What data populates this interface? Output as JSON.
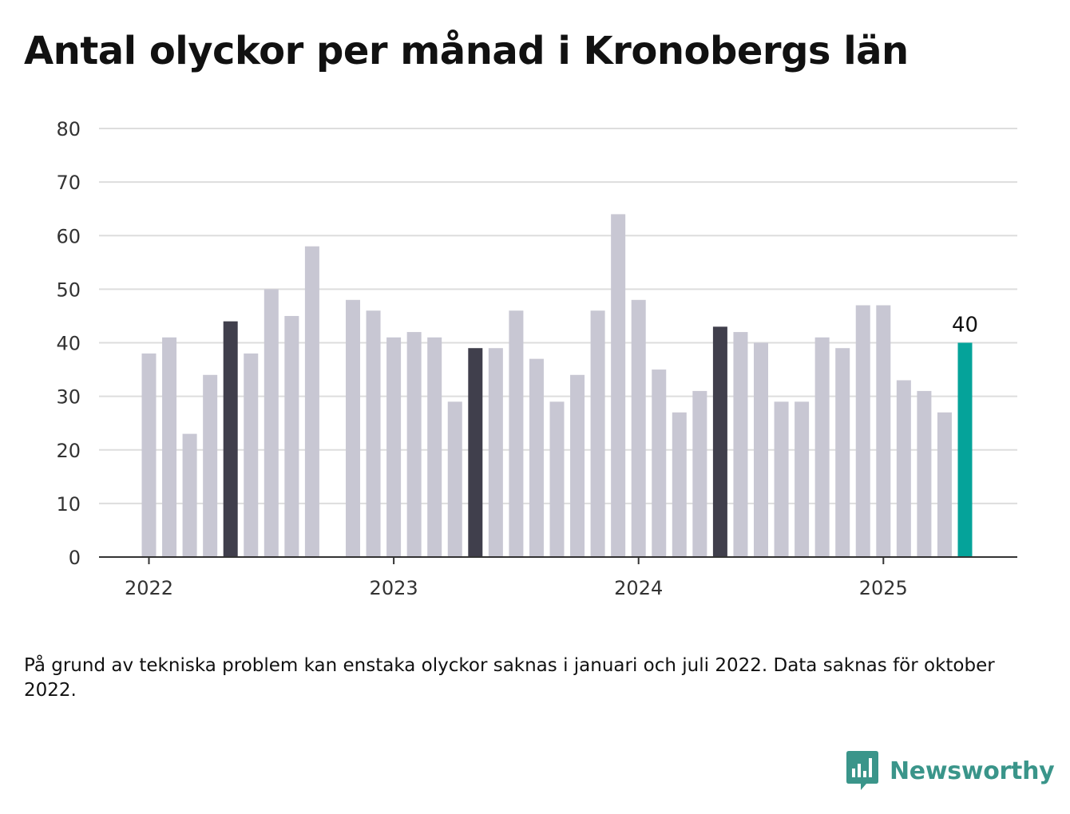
{
  "title": "Antal olyckor per månad i Kronobergs län",
  "note": "På grund av tekniska problem kan enstaka olyckor saknas i januari och juli 2022. Data saknas för oktober 2022.",
  "brand": {
    "name": "Newsworthy",
    "icon": "newsworthy-logo-icon",
    "color": "#3a958a"
  },
  "colors": {
    "default_bar": "#c8c7d3",
    "highlight_bar": "#403f4c",
    "latest_bar": "#05a39a",
    "grid": "#dddddd",
    "axis": "#333333"
  },
  "chart_data": {
    "type": "bar",
    "title": "Antal olyckor per månad i Kronobergs län",
    "xlabel": "",
    "ylabel": "",
    "ylim": [
      0,
      80
    ],
    "yticks": [
      0,
      10,
      20,
      30,
      40,
      50,
      60,
      70,
      80
    ],
    "xticks": [
      "2022",
      "2023",
      "2024",
      "2025"
    ],
    "grid": true,
    "categories": [
      "2022-01",
      "2022-02",
      "2022-03",
      "2022-04",
      "2022-05",
      "2022-06",
      "2022-07",
      "2022-08",
      "2022-09",
      "2022-10",
      "2022-11",
      "2022-12",
      "2023-01",
      "2023-02",
      "2023-03",
      "2023-04",
      "2023-05",
      "2023-06",
      "2023-07",
      "2023-08",
      "2023-09",
      "2023-10",
      "2023-11",
      "2023-12",
      "2024-01",
      "2024-02",
      "2024-03",
      "2024-04",
      "2024-05",
      "2024-06",
      "2024-07",
      "2024-08",
      "2024-09",
      "2024-10",
      "2024-11",
      "2024-12",
      "2025-01",
      "2025-02",
      "2025-03",
      "2025-04",
      "2025-05"
    ],
    "values": [
      38,
      41,
      23,
      34,
      44,
      38,
      50,
      45,
      58,
      null,
      48,
      46,
      41,
      42,
      41,
      29,
      39,
      39,
      46,
      37,
      29,
      34,
      46,
      64,
      48,
      35,
      27,
      31,
      43,
      42,
      40,
      29,
      29,
      41,
      39,
      47,
      47,
      33,
      31,
      27,
      40
    ],
    "highlighted": [
      "2022-05",
      "2023-05",
      "2024-05"
    ],
    "latest": "2025-05",
    "data_labels": [
      {
        "category": "2025-05",
        "text": "40"
      }
    ]
  }
}
